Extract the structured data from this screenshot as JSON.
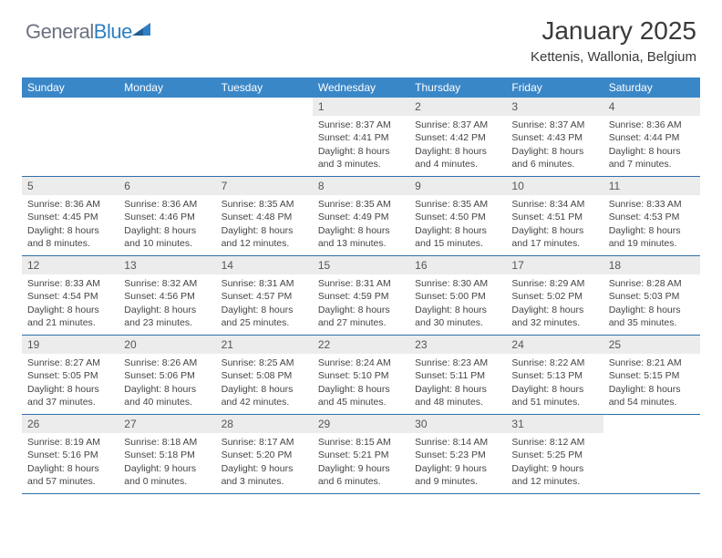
{
  "logo": {
    "general": "General",
    "blue": "Blue"
  },
  "title": "January 2025",
  "location": "Kettenis, Wallonia, Belgium",
  "colors": {
    "header_bg": "#3a87c8",
    "header_text": "#ffffff",
    "daynum_bg": "#ececec",
    "row_border": "#2f6fa8",
    "logo_gray": "#6b7280",
    "logo_blue": "#2f7fc2"
  },
  "day_names": [
    "Sunday",
    "Monday",
    "Tuesday",
    "Wednesday",
    "Thursday",
    "Friday",
    "Saturday"
  ],
  "weeks": [
    [
      null,
      null,
      null,
      {
        "n": "1",
        "sr": "8:37 AM",
        "ss": "4:41 PM",
        "dl": "8 hours and 3 minutes."
      },
      {
        "n": "2",
        "sr": "8:37 AM",
        "ss": "4:42 PM",
        "dl": "8 hours and 4 minutes."
      },
      {
        "n": "3",
        "sr": "8:37 AM",
        "ss": "4:43 PM",
        "dl": "8 hours and 6 minutes."
      },
      {
        "n": "4",
        "sr": "8:36 AM",
        "ss": "4:44 PM",
        "dl": "8 hours and 7 minutes."
      }
    ],
    [
      {
        "n": "5",
        "sr": "8:36 AM",
        "ss": "4:45 PM",
        "dl": "8 hours and 8 minutes."
      },
      {
        "n": "6",
        "sr": "8:36 AM",
        "ss": "4:46 PM",
        "dl": "8 hours and 10 minutes."
      },
      {
        "n": "7",
        "sr": "8:35 AM",
        "ss": "4:48 PM",
        "dl": "8 hours and 12 minutes."
      },
      {
        "n": "8",
        "sr": "8:35 AM",
        "ss": "4:49 PM",
        "dl": "8 hours and 13 minutes."
      },
      {
        "n": "9",
        "sr": "8:35 AM",
        "ss": "4:50 PM",
        "dl": "8 hours and 15 minutes."
      },
      {
        "n": "10",
        "sr": "8:34 AM",
        "ss": "4:51 PM",
        "dl": "8 hours and 17 minutes."
      },
      {
        "n": "11",
        "sr": "8:33 AM",
        "ss": "4:53 PM",
        "dl": "8 hours and 19 minutes."
      }
    ],
    [
      {
        "n": "12",
        "sr": "8:33 AM",
        "ss": "4:54 PM",
        "dl": "8 hours and 21 minutes."
      },
      {
        "n": "13",
        "sr": "8:32 AM",
        "ss": "4:56 PM",
        "dl": "8 hours and 23 minutes."
      },
      {
        "n": "14",
        "sr": "8:31 AM",
        "ss": "4:57 PM",
        "dl": "8 hours and 25 minutes."
      },
      {
        "n": "15",
        "sr": "8:31 AM",
        "ss": "4:59 PM",
        "dl": "8 hours and 27 minutes."
      },
      {
        "n": "16",
        "sr": "8:30 AM",
        "ss": "5:00 PM",
        "dl": "8 hours and 30 minutes."
      },
      {
        "n": "17",
        "sr": "8:29 AM",
        "ss": "5:02 PM",
        "dl": "8 hours and 32 minutes."
      },
      {
        "n": "18",
        "sr": "8:28 AM",
        "ss": "5:03 PM",
        "dl": "8 hours and 35 minutes."
      }
    ],
    [
      {
        "n": "19",
        "sr": "8:27 AM",
        "ss": "5:05 PM",
        "dl": "8 hours and 37 minutes."
      },
      {
        "n": "20",
        "sr": "8:26 AM",
        "ss": "5:06 PM",
        "dl": "8 hours and 40 minutes."
      },
      {
        "n": "21",
        "sr": "8:25 AM",
        "ss": "5:08 PM",
        "dl": "8 hours and 42 minutes."
      },
      {
        "n": "22",
        "sr": "8:24 AM",
        "ss": "5:10 PM",
        "dl": "8 hours and 45 minutes."
      },
      {
        "n": "23",
        "sr": "8:23 AM",
        "ss": "5:11 PM",
        "dl": "8 hours and 48 minutes."
      },
      {
        "n": "24",
        "sr": "8:22 AM",
        "ss": "5:13 PM",
        "dl": "8 hours and 51 minutes."
      },
      {
        "n": "25",
        "sr": "8:21 AM",
        "ss": "5:15 PM",
        "dl": "8 hours and 54 minutes."
      }
    ],
    [
      {
        "n": "26",
        "sr": "8:19 AM",
        "ss": "5:16 PM",
        "dl": "8 hours and 57 minutes."
      },
      {
        "n": "27",
        "sr": "8:18 AM",
        "ss": "5:18 PM",
        "dl": "9 hours and 0 minutes."
      },
      {
        "n": "28",
        "sr": "8:17 AM",
        "ss": "5:20 PM",
        "dl": "9 hours and 3 minutes."
      },
      {
        "n": "29",
        "sr": "8:15 AM",
        "ss": "5:21 PM",
        "dl": "9 hours and 6 minutes."
      },
      {
        "n": "30",
        "sr": "8:14 AM",
        "ss": "5:23 PM",
        "dl": "9 hours and 9 minutes."
      },
      {
        "n": "31",
        "sr": "8:12 AM",
        "ss": "5:25 PM",
        "dl": "9 hours and 12 minutes."
      },
      null
    ]
  ],
  "labels": {
    "sunrise": "Sunrise:",
    "sunset": "Sunset:",
    "daylight": "Daylight:"
  }
}
